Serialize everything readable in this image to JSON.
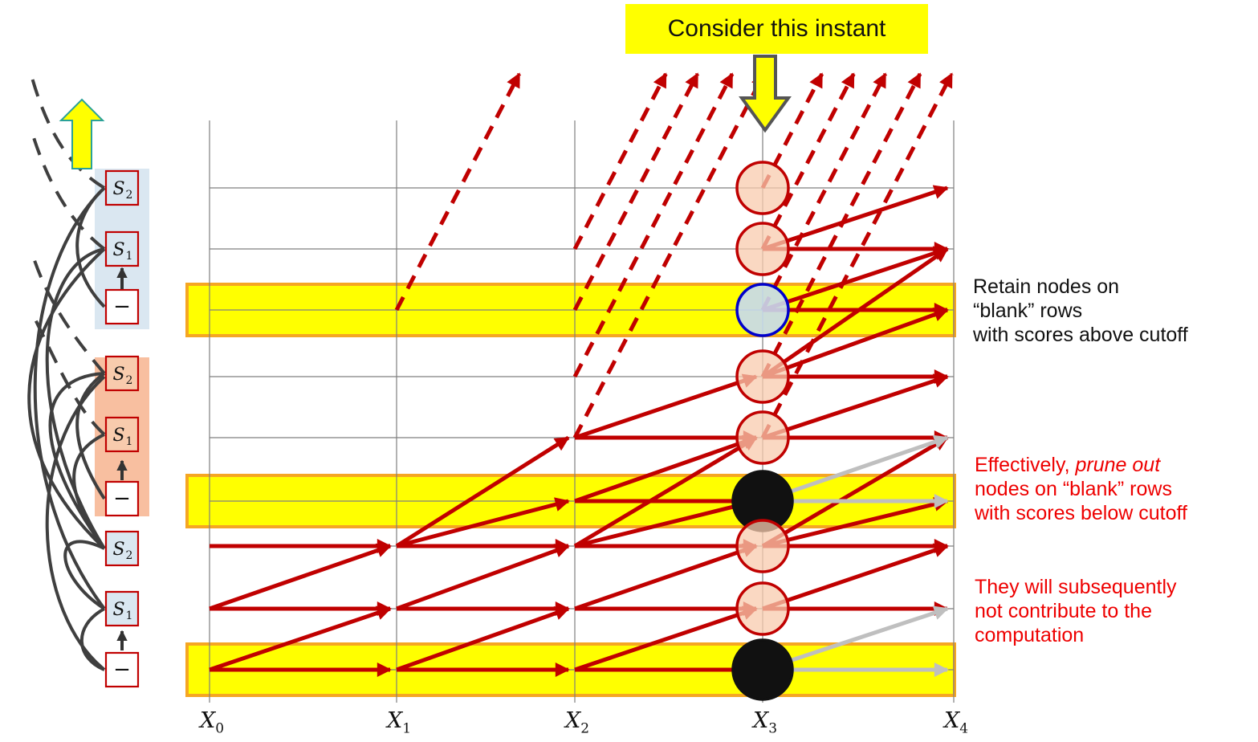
{
  "callout": {
    "text": "Consider this instant"
  },
  "x_axis": {
    "labels": [
      {
        "base": "X",
        "sub": "0"
      },
      {
        "base": "X",
        "sub": "1"
      },
      {
        "base": "X",
        "sub": "2"
      },
      {
        "base": "X",
        "sub": "3"
      },
      {
        "base": "X",
        "sub": "4"
      }
    ]
  },
  "rows": [
    {
      "symbol": "S",
      "sub": "2",
      "group": "upper",
      "kind": "symbol"
    },
    {
      "symbol": "S",
      "sub": "1",
      "group": "upper",
      "kind": "symbol"
    },
    {
      "symbol": "−",
      "sub": "",
      "group": "upper",
      "kind": "blank"
    },
    {
      "symbol": "S",
      "sub": "2",
      "group": "middle",
      "kind": "symbol"
    },
    {
      "symbol": "S",
      "sub": "1",
      "group": "middle",
      "kind": "symbol"
    },
    {
      "symbol": "−",
      "sub": "",
      "group": "middle",
      "kind": "blank"
    },
    {
      "symbol": "S",
      "sub": "2",
      "group": "lower",
      "kind": "symbol"
    },
    {
      "symbol": "S",
      "sub": "1",
      "group": "lower",
      "kind": "symbol"
    },
    {
      "symbol": "−",
      "sub": "",
      "group": "lower",
      "kind": "blank"
    }
  ],
  "nodes_at_instant": [
    "active",
    "active",
    "retained",
    "active",
    "active",
    "pruned",
    "active",
    "active",
    "pruned"
  ],
  "notes": {
    "retain": {
      "lines": [
        "Retain nodes on",
        "“blank” rows",
        "with scores above cutoff"
      ],
      "color": "#111111"
    },
    "prune": {
      "line1_pre": "Effectively, ",
      "line1_em": "prune out",
      "line2": "nodes on “blank” rows",
      "line3": "with scores below cutoff",
      "color": "#ee0000"
    },
    "consequence": {
      "lines": [
        "They will subsequently",
        "not contribute to the",
        "computation"
      ],
      "color": "#ee0000"
    }
  },
  "colors": {
    "arrow": "#c00000",
    "highlight": "#ffff00",
    "highlight_border": "#f5a623",
    "node_fill": "#f8cbad",
    "node_stroke": "#c00000",
    "retained_fill": "#c6d9f1",
    "retained_stroke": "#0000cc",
    "pruned_fill": "#111111",
    "faded_arrow": "#bfbfbf",
    "upper_group_bg": "#dae7f1",
    "middle_group_bg": "#f8bfa0",
    "label_box_stroke": "#c00000"
  }
}
